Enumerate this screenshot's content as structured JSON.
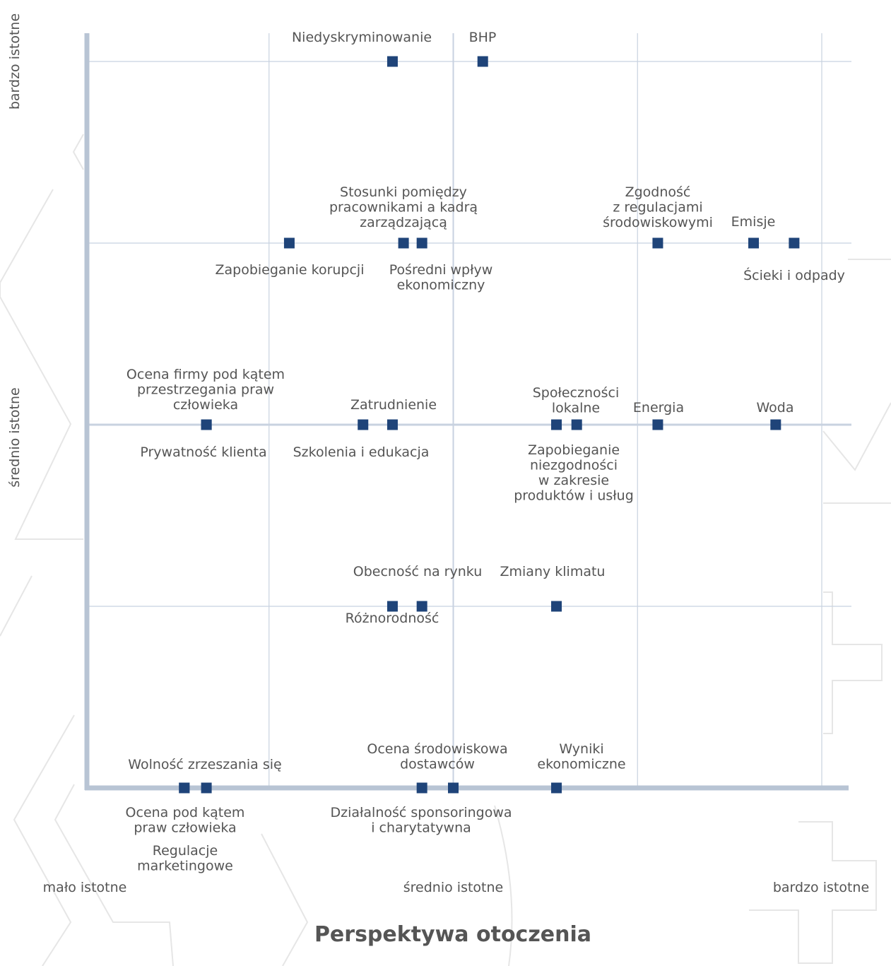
{
  "chart_data": {
    "type": "scatter",
    "title": "Perspektywa otoczenia",
    "xlim": [
      0,
      4
    ],
    "ylim": [
      0,
      4
    ],
    "xticks": [
      {
        "value": 0,
        "label": "mało istotne"
      },
      {
        "value": 2,
        "label": "średnio istotne"
      },
      {
        "value": 4,
        "label": "bardzo istotne"
      }
    ],
    "yticks": [
      {
        "value": 2,
        "label": "średnio istotne"
      },
      {
        "value": 4,
        "label": "bardzo istotne"
      }
    ],
    "xgrid": [
      1,
      2,
      3,
      4
    ],
    "ygrid": [
      1,
      2,
      3,
      4
    ],
    "color": "#1f4479",
    "labels": [
      [
        "Niedyskryminowanie"
      ],
      [
        "BHP"
      ],
      [
        "Zapobieganie korupcji"
      ],
      [
        "Stosunki pomiędzy",
        "pracownikami a kadrą",
        "zarządzającą"
      ],
      [
        "Pośredni wpływ",
        "ekonomiczny"
      ],
      [
        "Zgodność",
        "z regulacjami",
        "środowiskowymi"
      ],
      [
        "Emisje"
      ],
      [
        "Ścieki i odpady"
      ],
      [
        "Ocena firmy pod kątem",
        "przestrzegania praw",
        "człowieka"
      ],
      [
        "Prywatność klienta"
      ],
      [
        "Zatrudnienie"
      ],
      [
        "Szkolenia i edukacja"
      ],
      [
        "Społeczności",
        "lokalne"
      ],
      [
        "Zapobieganie",
        "niezgodności",
        "w zakresie",
        "produktów i usług"
      ],
      [
        "Energia"
      ],
      [
        "Woda"
      ],
      [
        "Obecność na rynku"
      ],
      [
        "Różnorodność"
      ],
      [
        "Zmiany klimatu"
      ],
      [
        "Wolność zrzeszania się"
      ],
      [
        "Ocena pod kątem",
        "praw człowieka"
      ],
      [
        "Regulacje",
        "marketingowe"
      ],
      [
        "Ocena środowiskowa",
        "dostawców"
      ],
      [
        "Działalność sponsoringowa",
        "i charytatywna"
      ],
      [
        "Wyniki",
        "ekonomiczne"
      ]
    ],
    "x": [
      1.67,
      2.16,
      1.11,
      1.73,
      1.83,
      3.11,
      3.63,
      3.85,
      0.66,
      0.66,
      1.67,
      1.51,
      2.67,
      2.56,
      3.11,
      3.75,
      1.67,
      1.83,
      2.56,
      0.66,
      0.54,
      0.54,
      2.0,
      1.83,
      2.56
    ],
    "values": [
      4,
      4,
      3,
      3,
      3,
      3,
      3,
      3,
      2,
      2,
      2,
      2,
      2,
      2,
      2,
      2,
      1,
      1,
      1,
      0,
      0,
      0,
      0,
      0,
      0
    ]
  }
}
